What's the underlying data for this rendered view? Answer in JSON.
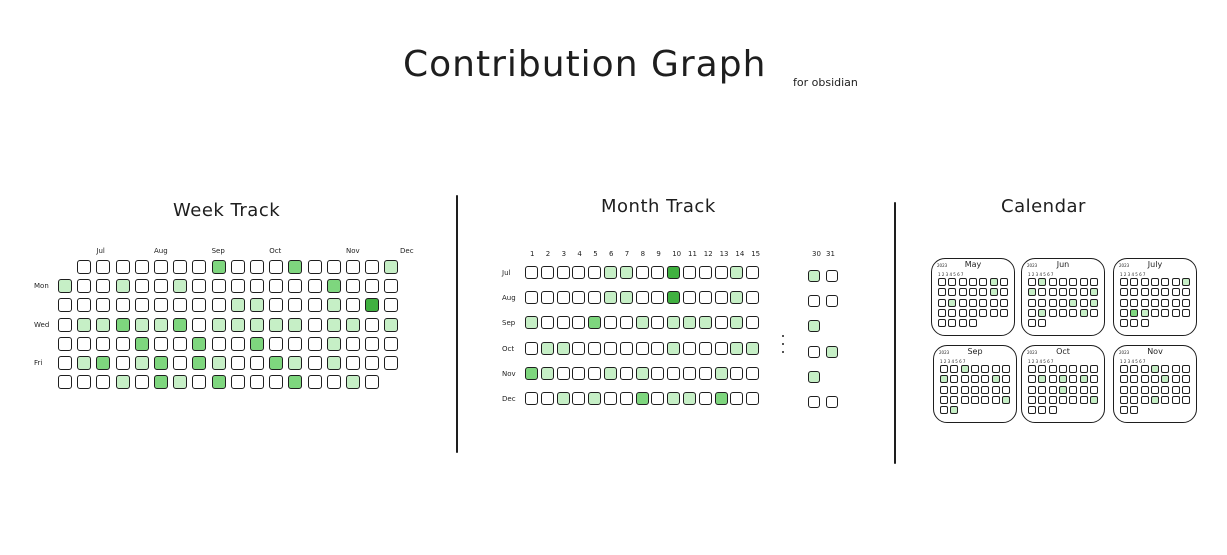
{
  "header": {
    "title": "Contribution Graph",
    "subtitle": "for obsidian"
  },
  "colors": {
    "empty": "#ffffff",
    "level1": "#c6efc6",
    "level2": "#7ed67e",
    "level3": "#40b040",
    "stroke": "#1e1e1e"
  },
  "week_track": {
    "title": "Week Track",
    "month_labels": [
      "Jul",
      "Aug",
      "Sep",
      "Oct",
      "Nov",
      "Dec"
    ],
    "day_labels": [
      "Mon",
      "Wed",
      "Fri"
    ],
    "levels": [
      [
        0,
        0,
        0,
        0,
        0,
        0,
        0,
        0,
        2,
        0,
        0,
        0,
        2,
        0,
        0,
        0,
        0,
        1
      ],
      [
        1,
        0,
        0,
        1,
        0,
        0,
        1,
        0,
        0,
        0,
        0,
        0,
        0,
        0,
        2,
        0,
        0,
        0
      ],
      [
        0,
        0,
        0,
        0,
        0,
        0,
        0,
        0,
        0,
        1,
        1,
        0,
        0,
        0,
        1,
        0,
        3,
        0
      ],
      [
        0,
        1,
        1,
        2,
        1,
        1,
        2,
        0,
        1,
        1,
        1,
        1,
        1,
        0,
        1,
        1,
        0,
        1
      ],
      [
        0,
        0,
        0,
        0,
        2,
        0,
        0,
        2,
        0,
        0,
        2,
        0,
        0,
        0,
        1,
        0,
        0,
        0
      ],
      [
        0,
        1,
        2,
        0,
        1,
        2,
        0,
        2,
        1,
        0,
        0,
        2,
        1,
        0,
        1,
        0,
        0,
        0
      ],
      [
        0,
        0,
        0,
        1,
        0,
        2,
        1,
        0,
        2,
        0,
        0,
        0,
        2,
        0,
        0,
        1,
        0,
        0
      ]
    ]
  },
  "month_track": {
    "title": "Month Track",
    "day_numbers": [
      "1",
      "2",
      "3",
      "4",
      "5",
      "6",
      "7",
      "8",
      "9",
      "10",
      "11",
      "12",
      "13",
      "14",
      "15",
      "30",
      "31"
    ],
    "months": [
      "Jul",
      "Aug",
      "Sep",
      "Oct",
      "Nov",
      "Dec"
    ],
    "levels": [
      [
        0,
        0,
        0,
        0,
        0,
        1,
        1,
        0,
        0,
        3,
        0,
        0,
        0,
        1,
        0
      ],
      [
        0,
        0,
        0,
        0,
        0,
        1,
        1,
        0,
        0,
        3,
        0,
        0,
        0,
        1,
        0
      ],
      [
        1,
        0,
        0,
        0,
        2,
        0,
        0,
        1,
        0,
        1,
        1,
        1,
        0,
        1,
        0
      ],
      [
        0,
        1,
        1,
        0,
        0,
        0,
        0,
        0,
        0,
        1,
        0,
        0,
        0,
        1,
        1
      ],
      [
        2,
        1,
        0,
        0,
        0,
        1,
        0,
        1,
        0,
        0,
        0,
        0,
        1,
        0,
        0
      ],
      [
        0,
        0,
        1,
        0,
        1,
        0,
        0,
        2,
        0,
        1,
        1,
        0,
        2,
        0,
        0
      ]
    ],
    "tail_levels": [
      [
        1,
        0
      ],
      [
        0,
        0
      ],
      [
        1
      ],
      [
        0,
        1
      ],
      [
        1
      ],
      [
        0,
        0
      ]
    ]
  },
  "calendar": {
    "title": "Calendar",
    "year": "2023",
    "weekday_numbers": [
      "1",
      "2",
      "3",
      "4",
      "5",
      "6",
      "7"
    ],
    "months": [
      {
        "name": "May",
        "levels": [
          0,
          0,
          0,
          0,
          0,
          1,
          0,
          0,
          0,
          0,
          0,
          0,
          1,
          0,
          0,
          1,
          0,
          0,
          0,
          0,
          0,
          0,
          0,
          0,
          0,
          0,
          0,
          0,
          0,
          0,
          0,
          0
        ]
      },
      {
        "name": "Jun",
        "levels": [
          0,
          1,
          0,
          0,
          0,
          0,
          0,
          1,
          0,
          0,
          0,
          0,
          0,
          1,
          0,
          0,
          0,
          0,
          1,
          0,
          1,
          0,
          1,
          0,
          0,
          0,
          1,
          0,
          0,
          0
        ]
      },
      {
        "name": "July",
        "levels": [
          0,
          0,
          0,
          0,
          0,
          0,
          1,
          0,
          0,
          0,
          0,
          0,
          0,
          0,
          0,
          0,
          0,
          0,
          0,
          0,
          0,
          0,
          2,
          1,
          0,
          0,
          0,
          0,
          0,
          0,
          0
        ]
      },
      {
        "name": "Sep",
        "levels": [
          0,
          0,
          1,
          0,
          0,
          0,
          0,
          1,
          0,
          0,
          0,
          0,
          1,
          0,
          0,
          0,
          0,
          0,
          0,
          0,
          0,
          0,
          0,
          0,
          0,
          0,
          0,
          1,
          0,
          1
        ]
      },
      {
        "name": "Oct",
        "levels": [
          0,
          0,
          0,
          0,
          0,
          0,
          0,
          0,
          1,
          0,
          1,
          0,
          1,
          0,
          0,
          0,
          0,
          1,
          0,
          0,
          0,
          0,
          0,
          0,
          0,
          0,
          0,
          1,
          0,
          0,
          0
        ]
      },
      {
        "name": "Nov",
        "levels": [
          0,
          0,
          0,
          1,
          0,
          0,
          0,
          0,
          0,
          0,
          0,
          1,
          0,
          0,
          0,
          0,
          0,
          0,
          0,
          0,
          0,
          0,
          0,
          0,
          1,
          0,
          0,
          0,
          0,
          0
        ]
      }
    ]
  }
}
